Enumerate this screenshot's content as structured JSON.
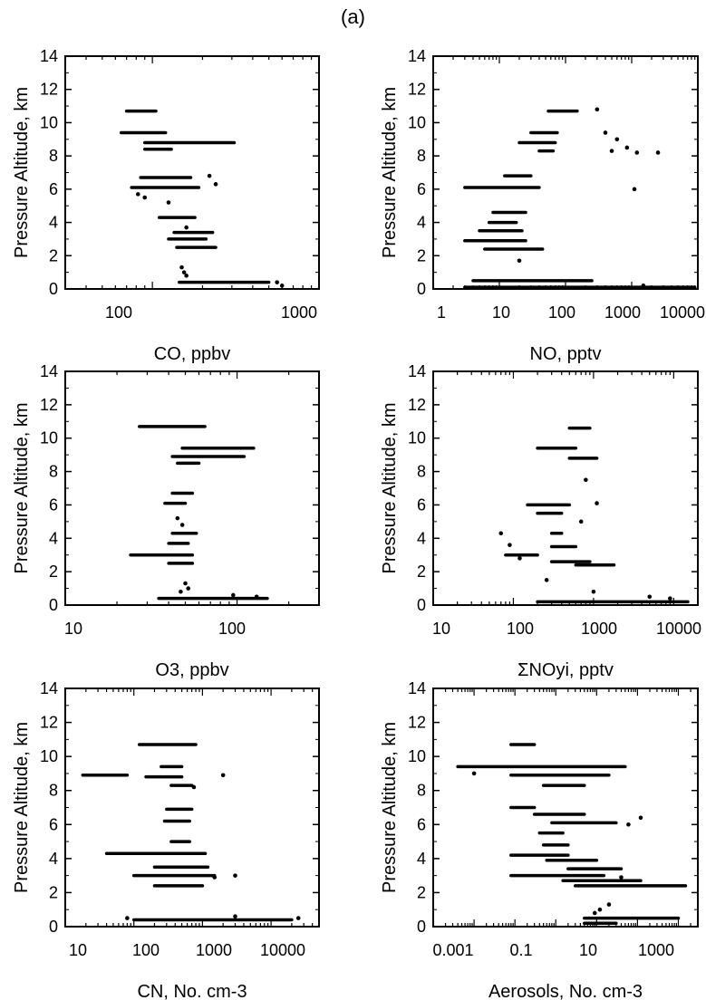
{
  "figure": {
    "title": "(a)"
  },
  "chart_data": [
    {
      "type": "scatter",
      "xlabel": "CO, ppbv",
      "ylabel": "Pressure Altitude, km",
      "xscale": "log",
      "xlim": [
        30,
        1000
      ],
      "ylim": [
        0,
        14
      ],
      "xticks": [
        "100",
        "1000"
      ],
      "yticks": [
        "0",
        "2",
        "4",
        "6",
        "8",
        "10",
        "12",
        "14"
      ],
      "bands": [
        {
          "y": 10.7,
          "x": [
            70,
            105
          ]
        },
        {
          "y": 9.4,
          "x": [
            65,
            120
          ]
        },
        {
          "y": 8.8,
          "x": [
            90,
            310
          ]
        },
        {
          "y": 8.4,
          "x": [
            90,
            130
          ]
        },
        {
          "y": 6.7,
          "x": [
            85,
            170
          ]
        },
        {
          "y": 6.1,
          "x": [
            75,
            190
          ]
        },
        {
          "y": 4.3,
          "x": [
            110,
            180
          ]
        },
        {
          "y": 3.4,
          "x": [
            135,
            230
          ]
        },
        {
          "y": 3.0,
          "x": [
            125,
            210
          ]
        },
        {
          "y": 2.5,
          "x": [
            140,
            240
          ]
        },
        {
          "y": 0.4,
          "x": [
            145,
            500
          ]
        }
      ],
      "points": [
        {
          "x": 220,
          "y": 6.8
        },
        {
          "x": 240,
          "y": 6.3
        },
        {
          "x": 82,
          "y": 5.7
        },
        {
          "x": 90,
          "y": 5.5
        },
        {
          "x": 125,
          "y": 5.2
        },
        {
          "x": 160,
          "y": 3.7
        },
        {
          "x": 150,
          "y": 1.3
        },
        {
          "x": 155,
          "y": 1.0
        },
        {
          "x": 160,
          "y": 0.8
        },
        {
          "x": 560,
          "y": 0.4
        },
        {
          "x": 600,
          "y": 0.2
        }
      ]
    },
    {
      "type": "scatter",
      "xlabel": "NO, pptv",
      "ylabel": "Pressure Altitude, km",
      "xscale": "log",
      "xlim": [
        1,
        10000
      ],
      "ylim": [
        0,
        14
      ],
      "xticks": [
        "1",
        "10",
        "100",
        "1000",
        "10000"
      ],
      "yticks": [
        "0",
        "2",
        "4",
        "6",
        "8",
        "10",
        "12",
        "14"
      ],
      "bands": [
        {
          "y": 10.7,
          "x": [
            55,
            150
          ]
        },
        {
          "y": 9.4,
          "x": [
            30,
            75
          ]
        },
        {
          "y": 8.8,
          "x": [
            20,
            70
          ]
        },
        {
          "y": 8.3,
          "x": [
            40,
            65
          ]
        },
        {
          "y": 6.8,
          "x": [
            12,
            30
          ]
        },
        {
          "y": 6.1,
          "x": [
            3,
            40
          ]
        },
        {
          "y": 4.6,
          "x": [
            8,
            25
          ]
        },
        {
          "y": 4.0,
          "x": [
            7,
            18
          ]
        },
        {
          "y": 3.5,
          "x": [
            5,
            22
          ]
        },
        {
          "y": 2.9,
          "x": [
            3,
            25
          ]
        },
        {
          "y": 2.4,
          "x": [
            6,
            45
          ]
        },
        {
          "y": 0.5,
          "x": [
            4,
            250
          ]
        },
        {
          "y": 0.1,
          "x": [
            3,
            9000
          ]
        }
      ],
      "points": [
        {
          "x": 300,
          "y": 10.8
        },
        {
          "x": 400,
          "y": 9.4
        },
        {
          "x": 600,
          "y": 9.0
        },
        {
          "x": 850,
          "y": 8.5
        },
        {
          "x": 1200,
          "y": 8.2
        },
        {
          "x": 2500,
          "y": 8.2
        },
        {
          "x": 1100,
          "y": 6.0
        },
        {
          "x": 500,
          "y": 8.3
        },
        {
          "x": 20,
          "y": 1.7
        },
        {
          "x": 1500,
          "y": 0.2
        }
      ]
    },
    {
      "type": "scatter",
      "xlabel": "O3, ppbv",
      "ylabel": "Pressure Altitude, km",
      "xscale": "log",
      "xlim": [
        10,
        300
      ],
      "ylim": [
        0,
        14
      ],
      "xticks": [
        "10",
        "100"
      ],
      "yticks": [
        "0",
        "2",
        "4",
        "6",
        "8",
        "10",
        "12",
        "14"
      ],
      "bands": [
        {
          "y": 10.7,
          "x": [
            27,
            65
          ]
        },
        {
          "y": 9.4,
          "x": [
            48,
            125
          ]
        },
        {
          "y": 8.9,
          "x": [
            42,
            110
          ]
        },
        {
          "y": 8.5,
          "x": [
            45,
            60
          ]
        },
        {
          "y": 6.7,
          "x": [
            42,
            55
          ]
        },
        {
          "y": 6.1,
          "x": [
            38,
            50
          ]
        },
        {
          "y": 4.3,
          "x": [
            42,
            58
          ]
        },
        {
          "y": 3.7,
          "x": [
            40,
            52
          ]
        },
        {
          "y": 3.0,
          "x": [
            24,
            55
          ]
        },
        {
          "y": 2.5,
          "x": [
            40,
            55
          ]
        },
        {
          "y": 0.4,
          "x": [
            35,
            150
          ]
        }
      ],
      "points": [
        {
          "x": 45,
          "y": 5.2
        },
        {
          "x": 48,
          "y": 4.8
        },
        {
          "x": 50,
          "y": 1.3
        },
        {
          "x": 52,
          "y": 1.0
        },
        {
          "x": 47,
          "y": 0.8
        },
        {
          "x": 95,
          "y": 0.6
        },
        {
          "x": 130,
          "y": 0.5
        }
      ]
    },
    {
      "type": "scatter",
      "xlabel": "ΣNOyi, pptv",
      "ylabel": "Pressure Altitude, km",
      "xscale": "log",
      "xlim": [
        10,
        20000
      ],
      "ylim": [
        0,
        14
      ],
      "xticks": [
        "10",
        "100",
        "1000",
        "10000"
      ],
      "yticks": [
        "0",
        "2",
        "4",
        "6",
        "8",
        "10",
        "12",
        "14"
      ],
      "bands": [
        {
          "y": 10.6,
          "x": [
            500,
            900
          ]
        },
        {
          "y": 9.4,
          "x": [
            200,
            600
          ]
        },
        {
          "y": 8.8,
          "x": [
            500,
            1100
          ]
        },
        {
          "y": 6.0,
          "x": [
            150,
            500
          ]
        },
        {
          "y": 5.5,
          "x": [
            200,
            400
          ]
        },
        {
          "y": 4.3,
          "x": [
            300,
            400
          ]
        },
        {
          "y": 3.5,
          "x": [
            300,
            600
          ]
        },
        {
          "y": 3.0,
          "x": [
            80,
            200
          ]
        },
        {
          "y": 2.6,
          "x": [
            300,
            900
          ]
        },
        {
          "y": 2.4,
          "x": [
            600,
            1800
          ]
        },
        {
          "y": 0.2,
          "x": [
            200,
            15000
          ]
        }
      ],
      "points": [
        {
          "x": 70,
          "y": 4.3
        },
        {
          "x": 90,
          "y": 3.6
        },
        {
          "x": 120,
          "y": 2.8
        },
        {
          "x": 1100,
          "y": 6.1
        },
        {
          "x": 700,
          "y": 5.0
        },
        {
          "x": 800,
          "y": 7.5
        },
        {
          "x": 260,
          "y": 1.5
        },
        {
          "x": 1000,
          "y": 0.8
        },
        {
          "x": 5000,
          "y": 0.5
        },
        {
          "x": 9000,
          "y": 0.4
        }
      ]
    },
    {
      "type": "scatter",
      "xlabel": "CN, No. cm-3",
      "ylabel": "Pressure Altitude, km",
      "xscale": "log",
      "xlim": [
        10,
        50000
      ],
      "ylim": [
        0,
        14
      ],
      "xticks": [
        "10",
        "100",
        "1000",
        "10000"
      ],
      "yticks": [
        "0",
        "2",
        "4",
        "6",
        "8",
        "10",
        "12",
        "14"
      ],
      "bands": [
        {
          "y": 10.7,
          "x": [
            120,
            800
          ]
        },
        {
          "y": 9.4,
          "x": [
            250,
            500
          ]
        },
        {
          "y": 8.9,
          "x": [
            18,
            80
          ]
        },
        {
          "y": 8.8,
          "x": [
            150,
            500
          ]
        },
        {
          "y": 8.3,
          "x": [
            350,
            700
          ]
        },
        {
          "y": 6.9,
          "x": [
            300,
            700
          ]
        },
        {
          "y": 6.2,
          "x": [
            280,
            650
          ]
        },
        {
          "y": 5.0,
          "x": [
            350,
            650
          ]
        },
        {
          "y": 4.3,
          "x": [
            40,
            1100
          ]
        },
        {
          "y": 3.5,
          "x": [
            200,
            1200
          ]
        },
        {
          "y": 3.0,
          "x": [
            100,
            1500
          ]
        },
        {
          "y": 2.4,
          "x": [
            200,
            1000
          ]
        },
        {
          "y": 0.4,
          "x": [
            100,
            20000
          ]
        }
      ],
      "points": [
        {
          "x": 2000,
          "y": 8.9
        },
        {
          "x": 750,
          "y": 8.2
        },
        {
          "x": 3000,
          "y": 3.0
        },
        {
          "x": 1500,
          "y": 2.9
        },
        {
          "x": 80,
          "y": 0.5
        },
        {
          "x": 3000,
          "y": 0.6
        },
        {
          "x": 25000,
          "y": 0.5
        }
      ]
    },
    {
      "type": "scatter",
      "xlabel": "Aerosols, No. cm-3",
      "ylabel": "Pressure Altitude, km",
      "xscale": "log",
      "xlim": [
        0.001,
        3000
      ],
      "ylim": [
        0,
        14
      ],
      "xticks": [
        "0.001",
        "0.1",
        "10",
        "1000"
      ],
      "yticks": [
        "0",
        "2",
        "4",
        "6",
        "8",
        "10",
        "12",
        "14"
      ],
      "bands": [
        {
          "y": 10.7,
          "x": [
            0.08,
            0.3
          ]
        },
        {
          "y": 9.4,
          "x": [
            0.004,
            50
          ]
        },
        {
          "y": 8.9,
          "x": [
            0.08,
            20
          ]
        },
        {
          "y": 8.3,
          "x": [
            0.5,
            5
          ]
        },
        {
          "y": 7.0,
          "x": [
            0.08,
            0.3
          ]
        },
        {
          "y": 6.6,
          "x": [
            0.3,
            5
          ]
        },
        {
          "y": 6.1,
          "x": [
            0.8,
            30
          ]
        },
        {
          "y": 5.5,
          "x": [
            0.4,
            1.5
          ]
        },
        {
          "y": 4.8,
          "x": [
            0.5,
            2
          ]
        },
        {
          "y": 4.2,
          "x": [
            0.08,
            2
          ]
        },
        {
          "y": 3.9,
          "x": [
            0.6,
            10
          ]
        },
        {
          "y": 3.4,
          "x": [
            2,
            40
          ]
        },
        {
          "y": 3.0,
          "x": [
            0.08,
            15
          ]
        },
        {
          "y": 2.7,
          "x": [
            1.5,
            120
          ]
        },
        {
          "y": 2.4,
          "x": [
            3,
            1500
          ]
        },
        {
          "y": 0.5,
          "x": [
            5,
            1000
          ]
        },
        {
          "y": 0.2,
          "x": [
            5,
            30
          ]
        }
      ],
      "points": [
        {
          "x": 0.01,
          "y": 9.0
        },
        {
          "x": 60,
          "y": 6.0
        },
        {
          "x": 120,
          "y": 6.4
        },
        {
          "x": 40,
          "y": 2.9
        },
        {
          "x": 20,
          "y": 1.3
        },
        {
          "x": 12,
          "y": 1.0
        },
        {
          "x": 9,
          "y": 0.8
        }
      ]
    }
  ]
}
